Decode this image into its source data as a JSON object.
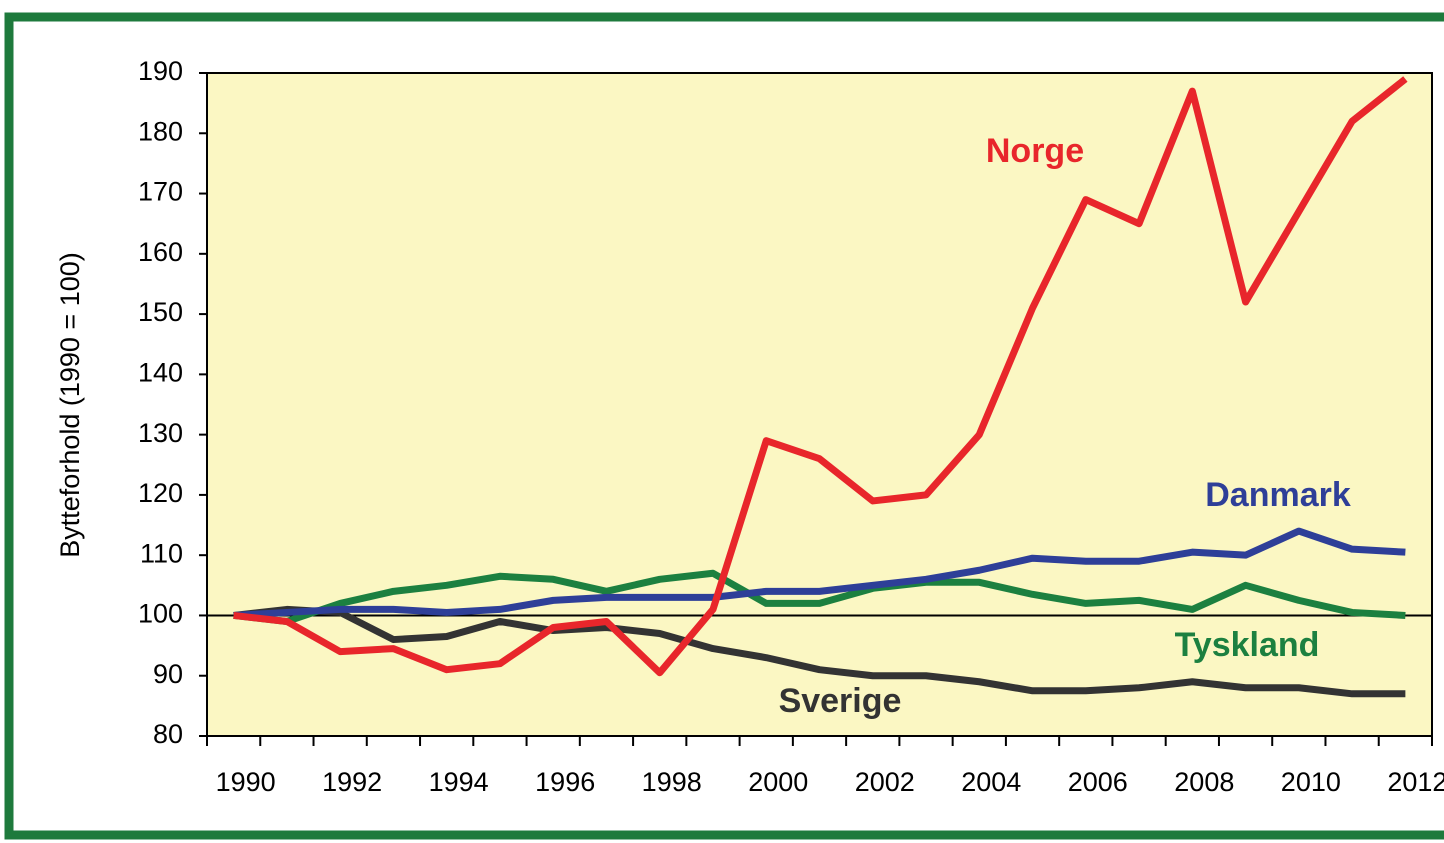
{
  "chart_data": {
    "type": "line",
    "y_label": "Bytteforhold (1990 = 100)",
    "categories": [
      "1990",
      null,
      "1992",
      null,
      "1994",
      null,
      "1996",
      null,
      "1998",
      null,
      "2000",
      null,
      "2002",
      null,
      "2004",
      null,
      "2006",
      null,
      "2008",
      null,
      "2010",
      null,
      "2012"
    ],
    "series": [
      {
        "name": "Norge",
        "color": "#e8262b",
        "values": [
          100,
          99,
          94,
          94.5,
          91,
          92,
          98,
          99,
          90.5,
          101,
          129,
          126,
          119,
          120,
          130,
          151,
          169,
          165,
          187,
          152,
          167,
          182,
          189
        ]
      },
      {
        "name": "Danmark",
        "color": "#2e3f98",
        "values": [
          100,
          100.5,
          101,
          101,
          100.5,
          101,
          102.5,
          103,
          103,
          103,
          104,
          104,
          105,
          106,
          107.5,
          109.5,
          109,
          109,
          110.5,
          110,
          114,
          111,
          110.5
        ]
      },
      {
        "name": "Tyskland",
        "color": "#1c8040",
        "values": [
          100,
          99,
          102,
          104,
          105,
          106.5,
          106,
          104,
          106,
          107,
          102,
          102,
          104.5,
          105.5,
          105.5,
          103.5,
          102,
          102.5,
          101,
          105,
          102.5,
          100.5,
          100
        ]
      },
      {
        "name": "Sverige",
        "color": "#333333",
        "values": [
          100,
          101,
          100.5,
          96,
          96.5,
          99,
          97.5,
          98,
          97,
          94.5,
          93,
          91,
          90,
          90,
          89,
          87.5,
          87.5,
          88,
          89,
          88,
          88,
          87,
          87
        ]
      }
    ],
    "reference_line": 100,
    "ylim": [
      80,
      190
    ],
    "yticks": [
      80,
      90,
      100,
      110,
      120,
      130,
      140,
      150,
      160,
      170,
      180,
      190
    ],
    "plot_background": "#fbf7c3",
    "grid": false
  }
}
